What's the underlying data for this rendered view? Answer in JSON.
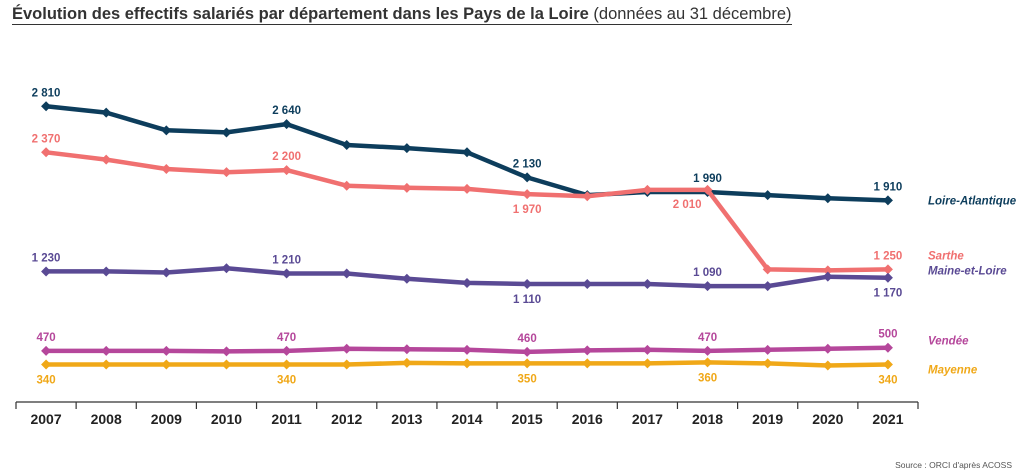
{
  "title": {
    "main": "Évolution des effectifs salariés par département dans les Pays de la Loire",
    "sub": " (données au 31 décembre)"
  },
  "source": "Source : ORCI d'après ACOSS",
  "chart_data": {
    "type": "line",
    "title": "Évolution des effectifs salariés par département dans les Pays de la Loire (données au 31 décembre)",
    "x": [
      "2007",
      "2008",
      "2009",
      "2010",
      "2011",
      "2012",
      "2013",
      "2014",
      "2015",
      "2016",
      "2017",
      "2018",
      "2019",
      "2020",
      "2021"
    ],
    "ylim": [
      0,
      3100
    ],
    "grid": false,
    "legend": "right, at line ends",
    "series": [
      {
        "name": "Loire-Atlantique",
        "color": "#0d3d5c",
        "values": [
          2810,
          2750,
          2580,
          2560,
          2640,
          2440,
          2410,
          2370,
          2130,
          1960,
          1990,
          1990,
          1960,
          1930,
          1910
        ],
        "labels": [
          {
            "i": 0,
            "text": "2 810",
            "pos": "above"
          },
          {
            "i": 4,
            "text": "2 640",
            "pos": "above"
          },
          {
            "i": 8,
            "text": "2 130",
            "pos": "above"
          },
          {
            "i": 11,
            "text": "1 990",
            "pos": "above"
          },
          {
            "i": 14,
            "text": "1 910",
            "pos": "above"
          }
        ]
      },
      {
        "name": "Sarthe",
        "color": "#f07070",
        "values": [
          2370,
          2300,
          2210,
          2180,
          2200,
          2050,
          2030,
          2020,
          1970,
          1950,
          2010,
          2010,
          1250,
          1240,
          1250
        ],
        "labels": [
          {
            "i": 0,
            "text": "2 370",
            "pos": "above"
          },
          {
            "i": 4,
            "text": "2 200",
            "pos": "above"
          },
          {
            "i": 8,
            "text": "1 970",
            "pos": "below"
          },
          {
            "i": 11,
            "text": "2 010",
            "pos": "below-left"
          },
          {
            "i": 14,
            "text": "1 250",
            "pos": "above"
          }
        ]
      },
      {
        "name": "Maine-et-Loire",
        "color": "#5a4a94",
        "values": [
          1230,
          1230,
          1220,
          1260,
          1210,
          1210,
          1160,
          1120,
          1110,
          1110,
          1110,
          1090,
          1090,
          1180,
          1170
        ],
        "labels": [
          {
            "i": 0,
            "text": "1 230",
            "pos": "above"
          },
          {
            "i": 4,
            "text": "1 210",
            "pos": "above"
          },
          {
            "i": 8,
            "text": "1 110",
            "pos": "below"
          },
          {
            "i": 11,
            "text": "1 090",
            "pos": "above"
          },
          {
            "i": 14,
            "text": "1 170",
            "pos": "below"
          }
        ]
      },
      {
        "name": "Vendée",
        "color": "#b5479b",
        "values": [
          470,
          470,
          470,
          465,
          470,
          490,
          485,
          480,
          460,
          475,
          480,
          470,
          480,
          490,
          500
        ],
        "labels": [
          {
            "i": 0,
            "text": "470",
            "pos": "above"
          },
          {
            "i": 4,
            "text": "470",
            "pos": "above"
          },
          {
            "i": 8,
            "text": "460",
            "pos": "above"
          },
          {
            "i": 11,
            "text": "470",
            "pos": "above"
          },
          {
            "i": 14,
            "text": "500",
            "pos": "above"
          }
        ]
      },
      {
        "name": "Mayenne",
        "color": "#f0a818",
        "values": [
          340,
          340,
          340,
          340,
          340,
          340,
          355,
          350,
          350,
          350,
          350,
          360,
          350,
          330,
          340
        ],
        "labels": [
          {
            "i": 0,
            "text": "340",
            "pos": "below"
          },
          {
            "i": 4,
            "text": "340",
            "pos": "below"
          },
          {
            "i": 8,
            "text": "350",
            "pos": "below"
          },
          {
            "i": 11,
            "text": "360",
            "pos": "below"
          },
          {
            "i": 14,
            "text": "340",
            "pos": "below"
          }
        ]
      }
    ]
  }
}
